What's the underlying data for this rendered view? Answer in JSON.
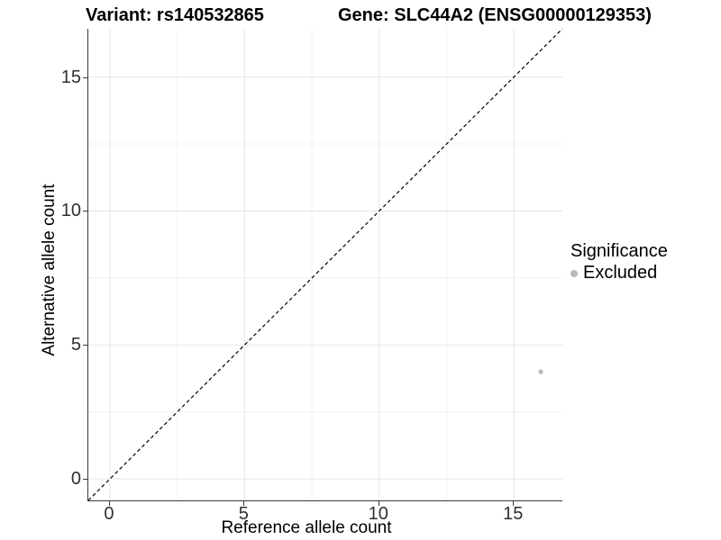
{
  "chart_data": {
    "type": "scatter",
    "title_left": "Variant: rs140532865",
    "title_right": "Gene: SLC44A2 (ENSG00000129353)",
    "xlabel": "Reference allele count",
    "ylabel": "Alternative allele count",
    "xlim": [
      -0.8,
      16.8
    ],
    "ylim": [
      -0.8,
      16.8
    ],
    "x_ticks": [
      0,
      5,
      10,
      15
    ],
    "y_ticks": [
      0,
      5,
      10,
      15
    ],
    "x_minor_ticks": [
      2.5,
      7.5,
      12.5
    ],
    "y_minor_ticks": [
      2.5,
      7.5,
      12.5
    ],
    "grid": true,
    "series": [
      {
        "name": "Excluded",
        "color": "#b9b9b9",
        "point_radius": 2.7,
        "points": [
          {
            "x": 16,
            "y": 4
          }
        ]
      }
    ],
    "reference_line": {
      "type": "identity",
      "style": "dashed",
      "color": "#000000"
    },
    "legend": {
      "title": "Significance",
      "position": "right",
      "entries": [
        {
          "label": "Excluded",
          "color": "#b9b9b9"
        }
      ]
    }
  },
  "colors": {
    "grid_major": "#e5e5e5",
    "grid_minor": "#f2f2f2",
    "axis_line": "#3a3a3a",
    "tick_text": "#303030",
    "background": "#ffffff"
  }
}
